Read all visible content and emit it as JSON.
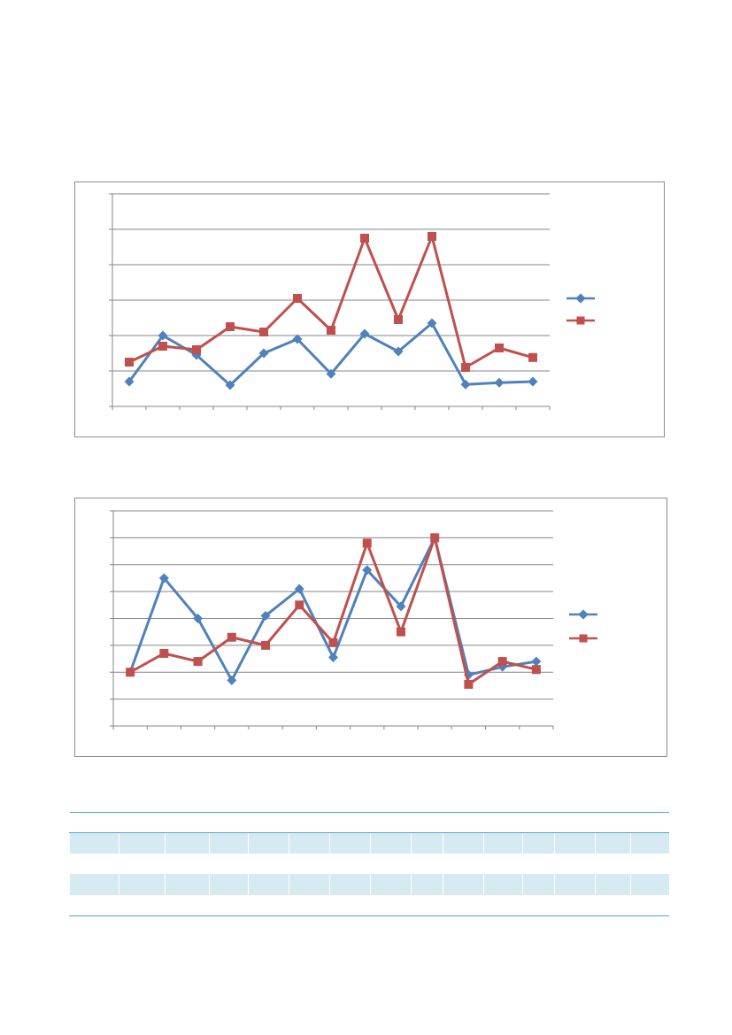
{
  "colors": {
    "series1": "#4f81bd",
    "series2": "#c0504d",
    "gridline": "#868686",
    "axis": "#868686",
    "frame": "#8c8c8c",
    "table_accent": "#4bacc6",
    "table_band": "#d6eaf2"
  },
  "chart_data": [
    {
      "type": "line",
      "title": "",
      "xlabel": "",
      "ylabel": "",
      "categories": [
        "",
        "",
        "",
        "",
        "",
        "",
        "",
        "",
        "",
        "",
        "",
        "",
        ""
      ],
      "ylim": [
        0,
        6
      ],
      "yticks": [
        "",
        "",
        "",
        "",
        "",
        "",
        ""
      ],
      "grid": true,
      "legend_position": "right",
      "series": [
        {
          "name": "",
          "marker": "diamond",
          "color": "#4f81bd",
          "values": [
            0.7,
            2.0,
            1.45,
            0.6,
            1.5,
            1.9,
            0.92,
            2.05,
            1.55,
            2.35,
            0.62,
            0.67,
            0.7
          ]
        },
        {
          "name": "",
          "marker": "square",
          "color": "#c0504d",
          "values": [
            1.25,
            1.7,
            1.6,
            2.25,
            2.1,
            3.05,
            2.15,
            4.75,
            2.45,
            4.8,
            1.1,
            1.65,
            1.38
          ]
        }
      ]
    },
    {
      "type": "line",
      "title": "",
      "xlabel": "",
      "ylabel": "",
      "categories": [
        "",
        "",
        "",
        "",
        "",
        "",
        "",
        "",
        "",
        "",
        "",
        "",
        ""
      ],
      "ylim": [
        0,
        8
      ],
      "yticks": [
        "",
        "",
        "",
        "",
        "",
        "",
        "",
        "",
        ""
      ],
      "grid": true,
      "legend_position": "right",
      "series": [
        {
          "name": "",
          "marker": "diamond",
          "color": "#4f81bd",
          "values": [
            2.0,
            5.5,
            4.0,
            1.7,
            4.1,
            5.1,
            2.55,
            5.8,
            4.45,
            7.0,
            1.9,
            2.2,
            2.4
          ]
        },
        {
          "name": "",
          "marker": "square",
          "color": "#c0504d",
          "values": [
            2.0,
            2.7,
            2.4,
            3.3,
            3.0,
            4.5,
            3.1,
            6.8,
            3.5,
            7.0,
            1.55,
            2.4,
            2.1
          ]
        }
      ]
    }
  ],
  "table": {
    "headers": [
      "",
      "",
      "",
      "",
      "",
      "",
      "",
      "",
      "",
      "",
      "",
      "",
      "",
      "",
      ""
    ],
    "rows": [
      [
        "",
        "",
        "",
        "",
        "",
        "",
        "",
        "",
        "",
        "",
        "",
        "",
        "",
        "",
        ""
      ],
      [
        "",
        "",
        "",
        "",
        "",
        "",
        "",
        "",
        "",
        "",
        "",
        "",
        "",
        "",
        ""
      ],
      [
        "",
        "",
        "",
        "",
        "",
        "",
        "",
        "",
        "",
        "",
        "",
        "",
        "",
        "",
        ""
      ],
      [
        "",
        "",
        "",
        "",
        "",
        "",
        "",
        "",
        "",
        "",
        "",
        "",
        "",
        "",
        ""
      ]
    ]
  }
}
